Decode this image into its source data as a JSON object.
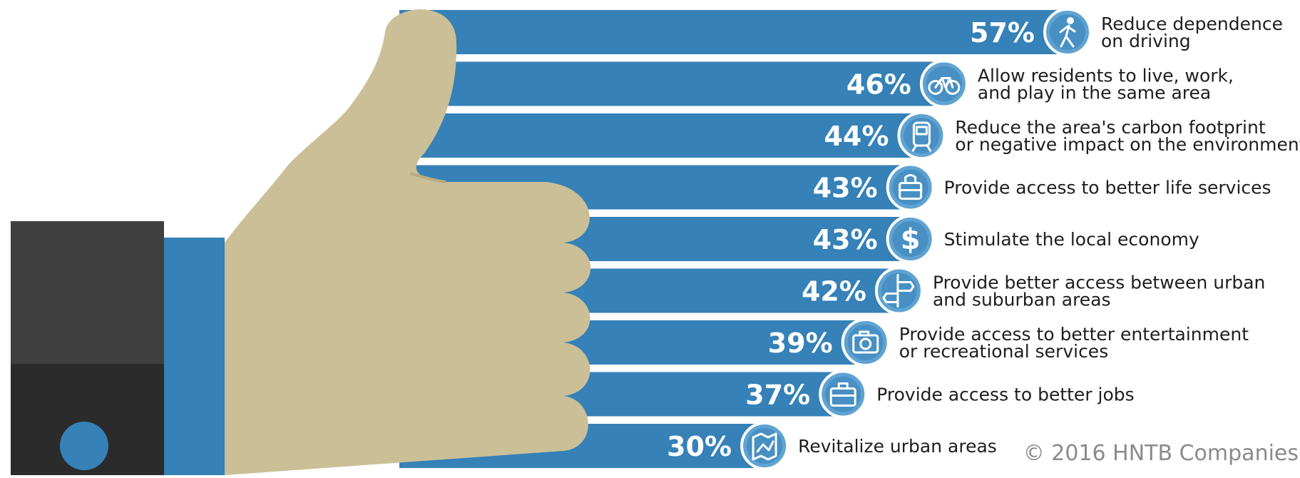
{
  "colors": {
    "bar": "#3581b8",
    "bar_highlight": "#5fa3d2",
    "hand": "#cbbf97",
    "sleeve_upper": "#404040",
    "sleeve_lower": "#2b2b2b",
    "cuff": "#3581b8",
    "button": "#3581b8",
    "label_text": "#1e1e1e",
    "value_text": "#ffffff",
    "copyright_text": "#8a8a8a"
  },
  "chart_data": {
    "type": "bar",
    "orientation": "horizontal",
    "title": "",
    "xlabel": "",
    "ylabel": "",
    "xlim": [
      0,
      57
    ],
    "value_suffix": "%",
    "grid": false,
    "legend": "none",
    "categories": [
      [
        "Reduce dependence",
        "on driving"
      ],
      [
        "Allow residents to live, work,",
        "and play in the same area"
      ],
      [
        "Reduce the area's carbon footprint",
        "or negative impact on the environment"
      ],
      [
        "Provide access to better life services"
      ],
      [
        "Stimulate the local economy"
      ],
      [
        "Provide better access between urban",
        "and suburban areas"
      ],
      [
        "Provide access to better entertainment",
        "or recreational services"
      ],
      [
        "Provide access to better jobs"
      ],
      [
        "Revitalize urban areas"
      ]
    ],
    "values": [
      57,
      46,
      44,
      43,
      43,
      42,
      39,
      37,
      30
    ],
    "icons": [
      "pedestrian-icon",
      "bicycle-icon",
      "train-icon",
      "lunchbox-icon",
      "dollar-icon",
      "road-sign-icon",
      "camera-icon",
      "briefcase-icon",
      "city-map-icon"
    ]
  },
  "footer": {
    "copyright": "© 2016 HNTB Companies"
  }
}
